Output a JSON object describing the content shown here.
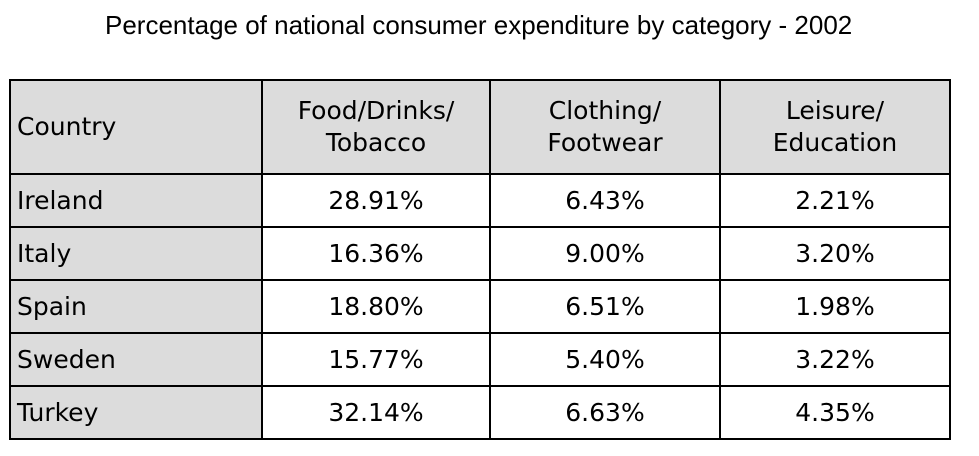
{
  "chart_data": {
    "type": "table",
    "title": "Percentage of national consumer expenditure by category - 2002",
    "columns": [
      {
        "lines": [
          "Country"
        ]
      },
      {
        "lines": [
          "Food/Drinks/",
          "Tobacco"
        ]
      },
      {
        "lines": [
          "Clothing/",
          "Footwear"
        ]
      },
      {
        "lines": [
          "Leisure/",
          "Education"
        ]
      }
    ],
    "rows": [
      {
        "country": "Ireland",
        "values": [
          "28.91%",
          "6.43%",
          "2.21%"
        ]
      },
      {
        "country": "Italy",
        "values": [
          "16.36%",
          "9.00%",
          "3.20%"
        ]
      },
      {
        "country": "Spain",
        "values": [
          "18.80%",
          "6.51%",
          "1.98%"
        ]
      },
      {
        "country": "Sweden",
        "values": [
          "15.77%",
          "5.40%",
          "3.22%"
        ]
      },
      {
        "country": "Turkey",
        "values": [
          "32.14%",
          "6.63%",
          "4.35%"
        ]
      }
    ]
  }
}
